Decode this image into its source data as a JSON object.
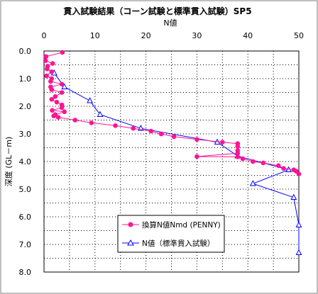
{
  "chart_data": {
    "type": "line",
    "title": "貫入試験結果（コーン試験と標準貫入試験）SP5",
    "xlabel": "N値",
    "ylabel": "深度 (GL－m)",
    "xlim": [
      0,
      50
    ],
    "ylim": [
      0,
      8
    ],
    "y_inverted": true,
    "x_ticks": [
      "0",
      "10",
      "20",
      "30",
      "40",
      "50"
    ],
    "y_ticks": [
      "0.0",
      "1.0",
      "2.0",
      "3.0",
      "4.0",
      "5.0",
      "6.0",
      "7.0",
      "8.0"
    ],
    "grid": true,
    "legend_position": "bottom-center",
    "series": [
      {
        "name": "換算N値Nmd (PENNY)",
        "color": "#ff1493",
        "marker": "circle",
        "points": [
          [
            3.6,
            0.05
          ],
          [
            0.4,
            0.2
          ],
          [
            0.3,
            0.35
          ],
          [
            1.7,
            0.45
          ],
          [
            0.7,
            0.55
          ],
          [
            0.6,
            0.65
          ],
          [
            1.5,
            0.75
          ],
          [
            0.5,
            0.9
          ],
          [
            1.5,
            1.0
          ],
          [
            1.3,
            1.1
          ],
          [
            3.5,
            1.2
          ],
          [
            1.3,
            1.3
          ],
          [
            1.5,
            1.4
          ],
          [
            3.5,
            1.5
          ],
          [
            2.2,
            1.65
          ],
          [
            1.5,
            1.75
          ],
          [
            2.5,
            1.85
          ],
          [
            3.5,
            1.95
          ],
          [
            3.5,
            2.05
          ],
          [
            1.6,
            2.15
          ],
          [
            4.0,
            2.2
          ],
          [
            2.2,
            2.3
          ],
          [
            1.9,
            2.35
          ],
          [
            2.8,
            2.4
          ],
          [
            6.1,
            2.5
          ],
          [
            9.3,
            2.6
          ],
          [
            14.0,
            2.7
          ],
          [
            17.5,
            2.8
          ],
          [
            21.0,
            2.9
          ],
          [
            23.0,
            3.0
          ],
          [
            25.5,
            3.1
          ],
          [
            30.0,
            3.2
          ],
          [
            35.0,
            3.3
          ],
          [
            38.0,
            3.35
          ],
          [
            38.0,
            3.45
          ],
          [
            38.0,
            3.6
          ],
          [
            38.0,
            3.7
          ],
          [
            30.0,
            3.82
          ],
          [
            38.0,
            3.83
          ],
          [
            39.0,
            3.9
          ],
          [
            41.0,
            4.0
          ],
          [
            43.0,
            4.05
          ],
          [
            46.0,
            4.15
          ],
          [
            47.0,
            4.25
          ],
          [
            49.0,
            4.3
          ],
          [
            49.5,
            4.35
          ],
          [
            50.0,
            4.45
          ]
        ]
      },
      {
        "name": "N値（標準貫入試験）",
        "color": "#0000ff",
        "marker": "triangle",
        "points": [
          [
            2.0,
            0.8
          ],
          [
            4.0,
            1.3
          ],
          [
            9.0,
            1.8
          ],
          [
            11.0,
            2.3
          ],
          [
            19.0,
            2.8
          ],
          [
            34.0,
            3.3
          ],
          [
            38.0,
            3.8
          ],
          [
            48.0,
            4.3
          ],
          [
            41.0,
            4.8
          ],
          [
            49.0,
            5.3
          ],
          [
            50.0,
            6.3
          ],
          [
            50.0,
            7.3
          ]
        ]
      }
    ]
  }
}
